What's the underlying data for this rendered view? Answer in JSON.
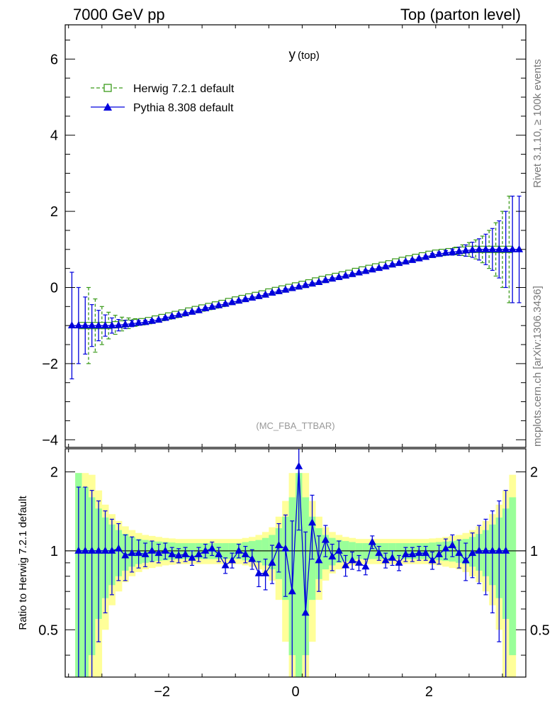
{
  "header": {
    "left": "7000 GeV pp",
    "right": "Top (parton level)"
  },
  "plot_title_main": "y",
  "plot_title_sub": "(top)",
  "watermark": "(MC_FBA_TTBAR)",
  "side_label_top": "Rivet 3.1.10, ≥ 100k events",
  "side_label_bottom": "mcplots.cern.ch [arXiv:1306.3436]",
  "ratio_ylabel": "Ratio to Herwig 7.2.1 default",
  "colors": {
    "herwig": "#3a9a1a",
    "pythia": "#0000dd",
    "band_inner": "#99ff99",
    "band_outer": "#ffff99"
  },
  "chart_data": [
    {
      "type": "line",
      "panel": "main",
      "xlim": [
        -3.45,
        3.45
      ],
      "ylim": [
        -4.2,
        6.9
      ],
      "yticks": [
        -4,
        -2,
        0,
        2,
        4,
        6
      ],
      "legend_position": "top-left",
      "series": [
        {
          "name": "Herwig 7.2.1 default",
          "style": "dashed-step-open-square",
          "x": [
            -3.2,
            -3.1,
            -3.0,
            -2.9,
            -2.8,
            -2.7,
            -2.6,
            -2.5,
            -2.4,
            -2.3,
            -2.2,
            -2.1,
            -2.0,
            -1.9,
            -1.8,
            -1.7,
            -1.6,
            -1.5,
            -1.4,
            -1.3,
            -1.2,
            -1.1,
            -1.0,
            -0.9,
            -0.8,
            -0.7,
            -0.6,
            -0.5,
            -0.4,
            -0.3,
            -0.2,
            -0.1,
            0.0,
            0.1,
            0.2,
            0.3,
            0.4,
            0.5,
            0.6,
            0.7,
            0.8,
            0.9,
            1.0,
            1.1,
            1.2,
            1.3,
            1.4,
            1.5,
            1.6,
            1.7,
            1.8,
            1.9,
            2.0,
            2.1,
            2.2,
            2.3,
            2.4,
            2.5,
            2.6,
            2.7,
            2.8,
            2.9,
            3.0,
            3.1,
            3.2
          ],
          "y": [
            -1.0,
            -1.0,
            -1.0,
            -1.0,
            -1.0,
            -0.98,
            -0.96,
            -0.94,
            -0.92,
            -0.9,
            -0.87,
            -0.83,
            -0.79,
            -0.75,
            -0.71,
            -0.67,
            -0.62,
            -0.58,
            -0.54,
            -0.5,
            -0.46,
            -0.42,
            -0.37,
            -0.33,
            -0.29,
            -0.25,
            -0.21,
            -0.17,
            -0.12,
            -0.08,
            -0.04,
            0.0,
            0.04,
            0.08,
            0.12,
            0.17,
            0.21,
            0.25,
            0.29,
            0.33,
            0.37,
            0.42,
            0.46,
            0.5,
            0.54,
            0.58,
            0.62,
            0.67,
            0.71,
            0.75,
            0.79,
            0.83,
            0.87,
            0.9,
            0.92,
            0.94,
            0.96,
            0.98,
            1.0,
            1.0,
            1.0,
            1.0,
            1.0,
            1.0,
            1.0
          ],
          "yerr": [
            0.0,
            1.0,
            0.7,
            0.5,
            0.35,
            0.25,
            0.18,
            0.14,
            0.1,
            0.08,
            0.06,
            0.05,
            0.04,
            0.03,
            0.03,
            0.03,
            0.03,
            0.03,
            0.03,
            0.03,
            0.03,
            0.03,
            0.03,
            0.03,
            0.03,
            0.03,
            0.03,
            0.03,
            0.03,
            0.03,
            0.03,
            0.03,
            0.03,
            0.03,
            0.03,
            0.03,
            0.03,
            0.03,
            0.03,
            0.03,
            0.03,
            0.03,
            0.03,
            0.03,
            0.03,
            0.03,
            0.03,
            0.03,
            0.03,
            0.03,
            0.03,
            0.03,
            0.04,
            0.05,
            0.06,
            0.08,
            0.1,
            0.14,
            0.18,
            0.25,
            0.35,
            0.5,
            0.7,
            1.0,
            1.4
          ]
        },
        {
          "name": "Pythia 8.308 default",
          "style": "solid-filled-triangle",
          "x": [
            -3.35,
            -3.25,
            -3.15,
            -3.05,
            -2.95,
            -2.85,
            -2.75,
            -2.65,
            -2.55,
            -2.45,
            -2.35,
            -2.25,
            -2.15,
            -2.05,
            -1.95,
            -1.85,
            -1.75,
            -1.65,
            -1.55,
            -1.45,
            -1.35,
            -1.25,
            -1.15,
            -1.05,
            -0.95,
            -0.85,
            -0.75,
            -0.65,
            -0.55,
            -0.45,
            -0.35,
            -0.25,
            -0.15,
            -0.05,
            0.05,
            0.15,
            0.25,
            0.35,
            0.45,
            0.55,
            0.65,
            0.75,
            0.85,
            0.95,
            1.05,
            1.15,
            1.25,
            1.35,
            1.45,
            1.55,
            1.65,
            1.75,
            1.85,
            1.95,
            2.05,
            2.15,
            2.25,
            2.35,
            2.45,
            2.55,
            2.65,
            2.75,
            2.85,
            2.95,
            3.05,
            3.15,
            3.25,
            3.35
          ],
          "y": [
            -1.0,
            -1.0,
            -1.0,
            -1.0,
            -1.0,
            -1.0,
            -1.0,
            -0.99,
            -0.97,
            -0.95,
            -0.93,
            -0.91,
            -0.88,
            -0.85,
            -0.8,
            -0.76,
            -0.72,
            -0.68,
            -0.64,
            -0.6,
            -0.55,
            -0.51,
            -0.47,
            -0.43,
            -0.39,
            -0.35,
            -0.31,
            -0.27,
            -0.23,
            -0.19,
            -0.14,
            -0.1,
            -0.06,
            -0.02,
            0.02,
            0.06,
            0.1,
            0.14,
            0.19,
            0.23,
            0.27,
            0.31,
            0.35,
            0.39,
            0.43,
            0.47,
            0.51,
            0.55,
            0.6,
            0.64,
            0.68,
            0.72,
            0.76,
            0.8,
            0.85,
            0.88,
            0.91,
            0.93,
            0.95,
            0.97,
            0.99,
            1.0,
            1.0,
            1.0,
            1.0,
            1.0,
            1.0,
            1.0
          ],
          "yerr": [
            1.4,
            1.0,
            0.75,
            0.55,
            0.4,
            0.28,
            0.2,
            0.15,
            0.11,
            0.08,
            0.06,
            0.05,
            0.04,
            0.03,
            0.03,
            0.03,
            0.03,
            0.03,
            0.03,
            0.03,
            0.03,
            0.03,
            0.03,
            0.03,
            0.03,
            0.03,
            0.03,
            0.03,
            0.03,
            0.03,
            0.03,
            0.03,
            0.03,
            0.03,
            0.03,
            0.03,
            0.03,
            0.03,
            0.03,
            0.03,
            0.03,
            0.03,
            0.03,
            0.03,
            0.03,
            0.03,
            0.03,
            0.03,
            0.03,
            0.03,
            0.03,
            0.03,
            0.03,
            0.03,
            0.04,
            0.05,
            0.06,
            0.08,
            0.11,
            0.15,
            0.2,
            0.28,
            0.4,
            0.55,
            0.75,
            1.0,
            1.4,
            1.4
          ]
        }
      ]
    },
    {
      "type": "line",
      "panel": "ratio",
      "xlim": [
        -3.45,
        3.45
      ],
      "ylim": [
        0.33,
        2.45
      ],
      "log_scale": true,
      "ylabel": "Ratio to Herwig 7.2.1 default",
      "yticks": [
        0.5,
        1,
        2
      ],
      "xticks": [
        -2,
        0,
        2
      ],
      "reference": 1,
      "band": {
        "x_edges": [
          -3.3,
          -3.2,
          -3.1,
          -3.0,
          -2.9,
          -2.8,
          -2.7,
          -2.6,
          -2.5,
          -2.4,
          -2.3,
          -2.2,
          -2.1,
          -2.0,
          -1.9,
          -1.8,
          -1.7,
          -1.6,
          -1.5,
          -1.4,
          -1.3,
          -1.2,
          -1.1,
          -1.0,
          -0.9,
          -0.8,
          -0.7,
          -0.6,
          -0.5,
          -0.4,
          -0.3,
          -0.2,
          -0.1,
          0.0,
          0.1,
          0.2,
          0.3,
          0.4,
          0.5,
          0.6,
          0.7,
          0.8,
          0.9,
          1.0,
          1.1,
          1.2,
          1.3,
          1.4,
          1.5,
          1.6,
          1.7,
          1.8,
          1.9,
          2.0,
          2.1,
          2.2,
          2.3,
          2.4,
          2.5,
          2.6,
          2.7,
          2.8,
          2.9,
          3.0,
          3.1,
          3.2,
          3.3
        ],
        "inner": [
          0.98,
          0.75,
          0.6,
          0.45,
          0.34,
          0.26,
          0.2,
          0.16,
          0.13,
          0.11,
          0.1,
          0.09,
          0.085,
          0.08,
          0.075,
          0.07,
          0.07,
          0.07,
          0.07,
          0.07,
          0.07,
          0.07,
          0.07,
          0.07,
          0.07,
          0.08,
          0.09,
          0.1,
          0.12,
          0.15,
          0.22,
          0.35,
          0.6,
          0.98,
          0.6,
          0.35,
          0.22,
          0.15,
          0.12,
          0.1,
          0.09,
          0.08,
          0.07,
          0.07,
          0.07,
          0.07,
          0.07,
          0.07,
          0.07,
          0.07,
          0.07,
          0.07,
          0.07,
          0.075,
          0.08,
          0.085,
          0.09,
          0.1,
          0.11,
          0.13,
          0.16,
          0.2,
          0.26,
          0.34,
          0.45,
          0.6,
          0.98
        ],
        "outer": [
          0.98,
          0.98,
          0.95,
          0.7,
          0.5,
          0.38,
          0.3,
          0.24,
          0.2,
          0.17,
          0.15,
          0.14,
          0.13,
          0.12,
          0.115,
          0.11,
          0.11,
          0.11,
          0.11,
          0.11,
          0.11,
          0.11,
          0.11,
          0.11,
          0.11,
          0.12,
          0.13,
          0.15,
          0.18,
          0.23,
          0.35,
          0.55,
          0.98,
          0.98,
          0.98,
          0.55,
          0.35,
          0.23,
          0.18,
          0.15,
          0.13,
          0.12,
          0.11,
          0.11,
          0.11,
          0.11,
          0.11,
          0.11,
          0.11,
          0.11,
          0.11,
          0.11,
          0.11,
          0.115,
          0.12,
          0.13,
          0.14,
          0.15,
          0.17,
          0.2,
          0.24,
          0.3,
          0.38,
          0.5,
          0.7,
          0.95,
          0.98
        ]
      },
      "series": [
        {
          "name": "Pythia 8.308 default",
          "x": [
            -3.25,
            -3.15,
            -3.05,
            -2.95,
            -2.85,
            -2.75,
            -2.65,
            -2.55,
            -2.45,
            -2.35,
            -2.25,
            -2.15,
            -2.05,
            -1.95,
            -1.85,
            -1.75,
            -1.65,
            -1.55,
            -1.45,
            -1.35,
            -1.25,
            -1.15,
            -1.05,
            -0.95,
            -0.85,
            -0.75,
            -0.65,
            -0.55,
            -0.45,
            -0.35,
            -0.25,
            -0.15,
            -0.05,
            0.05,
            0.15,
            0.25,
            0.35,
            0.45,
            0.55,
            0.65,
            0.75,
            0.85,
            0.95,
            1.05,
            1.15,
            1.25,
            1.35,
            1.45,
            1.55,
            1.65,
            1.75,
            1.85,
            1.95,
            2.05,
            2.15,
            2.25,
            2.35,
            2.45,
            2.55,
            2.65,
            2.75,
            2.85,
            2.95,
            3.05,
            3.15
          ],
          "y": [
            1.0,
            1.0,
            1.0,
            1.0,
            1.0,
            1.0,
            1.02,
            0.96,
            0.98,
            0.98,
            0.97,
            1.0,
            0.98,
            1.0,
            0.97,
            0.96,
            0.97,
            0.94,
            0.97,
            1.0,
            1.02,
            0.97,
            0.88,
            0.92,
            1.0,
            0.97,
            0.93,
            0.82,
            0.82,
            0.9,
            1.05,
            1.02,
            0.7,
            2.1,
            0.58,
            1.28,
            0.92,
            1.1,
            0.95,
            1.0,
            0.88,
            0.92,
            0.9,
            0.87,
            1.08,
            0.98,
            0.92,
            0.94,
            0.9,
            0.97,
            0.97,
            0.98,
            0.98,
            0.92,
            0.97,
            1.02,
            1.05,
            0.98,
            0.92,
            0.98,
            1.0,
            1.0,
            1.0,
            1.0,
            1.0
          ],
          "yerr": [
            0.75,
            0.75,
            0.7,
            0.55,
            0.42,
            0.32,
            0.25,
            0.19,
            0.15,
            0.12,
            0.1,
            0.09,
            0.08,
            0.07,
            0.06,
            0.06,
            0.06,
            0.06,
            0.06,
            0.06,
            0.06,
            0.06,
            0.06,
            0.06,
            0.06,
            0.07,
            0.08,
            0.09,
            0.11,
            0.15,
            0.22,
            0.35,
            0.6,
            0.9,
            0.6,
            0.35,
            0.22,
            0.15,
            0.11,
            0.09,
            0.08,
            0.07,
            0.06,
            0.06,
            0.06,
            0.06,
            0.06,
            0.06,
            0.06,
            0.06,
            0.06,
            0.06,
            0.06,
            0.07,
            0.08,
            0.09,
            0.1,
            0.12,
            0.15,
            0.19,
            0.25,
            0.32,
            0.42,
            0.55,
            0.7
          ]
        }
      ]
    }
  ]
}
